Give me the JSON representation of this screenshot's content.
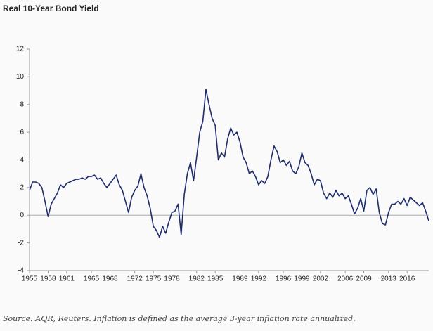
{
  "chart_data": {
    "type": "line",
    "title": "Real 10-Year Bond Yield",
    "footnote": "Source: AQR, Reuters. Inflation is defined as the average 3-year inflation rate annualized.",
    "x": [
      1955,
      1955.5,
      1956,
      1956.5,
      1957,
      1957.5,
      1958,
      1958.5,
      1959,
      1959.5,
      1960,
      1960.5,
      1961,
      1961.5,
      1962,
      1962.5,
      1963,
      1963.5,
      1964,
      1964.5,
      1965,
      1965.5,
      1966,
      1966.5,
      1967,
      1967.5,
      1968,
      1968.5,
      1969,
      1969.5,
      1970,
      1970.5,
      1971,
      1971.5,
      1972,
      1972.5,
      1973,
      1973.5,
      1974,
      1974.5,
      1975,
      1975.5,
      1976,
      1976.5,
      1977,
      1977.5,
      1978,
      1978.5,
      1979,
      1979.5,
      1980,
      1980.5,
      1981,
      1981.5,
      1982,
      1982.5,
      1983,
      1983.5,
      1984,
      1984.5,
      1985,
      1985.5,
      1986,
      1986.5,
      1987,
      1987.5,
      1988,
      1988.5,
      1989,
      1989.5,
      1990,
      1990.5,
      1991,
      1991.5,
      1992,
      1992.5,
      1993,
      1993.5,
      1994,
      1994.5,
      1995,
      1995.5,
      1996,
      1996.5,
      1997,
      1997.5,
      1998,
      1998.5,
      1999,
      1999.5,
      2000,
      2000.5,
      2001,
      2001.5,
      2002,
      2002.5,
      2003,
      2003.5,
      2004,
      2004.5,
      2005,
      2005.5,
      2006,
      2006.5,
      2007,
      2007.5,
      2008,
      2008.5,
      2009,
      2009.5,
      2010,
      2010.5,
      2011,
      2011.5,
      2012,
      2012.5,
      2013,
      2013.5,
      2014,
      2014.5,
      2015,
      2015.5,
      2016,
      2016.5,
      2017,
      2017.5,
      2018,
      2018.5,
      2019,
      2019.5
    ],
    "series": [
      {
        "name": "Real 10-Year Bond Yield",
        "color": "#1f2d6e",
        "values": [
          1.8,
          2.4,
          2.4,
          2.3,
          2.0,
          1.0,
          -0.1,
          0.8,
          1.2,
          1.6,
          2.2,
          2.0,
          2.3,
          2.4,
          2.5,
          2.6,
          2.6,
          2.7,
          2.6,
          2.8,
          2.8,
          2.9,
          2.6,
          2.7,
          2.3,
          2.0,
          2.3,
          2.6,
          2.9,
          2.2,
          1.8,
          1.0,
          0.2,
          1.3,
          1.8,
          2.1,
          3.0,
          2.0,
          1.4,
          0.5,
          -0.8,
          -1.1,
          -1.6,
          -0.8,
          -1.3,
          -0.5,
          0.2,
          0.3,
          0.8,
          -1.4,
          1.5,
          3.0,
          3.8,
          2.5,
          4.2,
          6.0,
          6.8,
          9.1,
          8.0,
          7.0,
          6.5,
          4.0,
          4.5,
          4.2,
          5.5,
          6.3,
          5.8,
          6.0,
          5.3,
          4.2,
          3.8,
          3.0,
          3.2,
          2.8,
          2.2,
          2.5,
          2.3,
          2.8,
          4.0,
          5.0,
          4.6,
          3.8,
          4.0,
          3.6,
          3.9,
          3.2,
          3.0,
          3.5,
          4.5,
          3.8,
          3.6,
          3.0,
          2.2,
          2.6,
          2.5,
          1.6,
          1.2,
          1.6,
          1.3,
          1.8,
          1.4,
          1.6,
          1.2,
          1.4,
          0.8,
          0.1,
          0.5,
          1.2,
          0.3,
          1.8,
          2.0,
          1.5,
          1.9,
          0.2,
          -0.6,
          -0.7,
          0.2,
          0.8,
          0.8,
          1.0,
          0.8,
          1.2,
          0.7,
          1.3,
          1.1,
          0.9,
          0.7,
          0.9,
          0.3,
          -0.4
        ]
      }
    ],
    "xlim": [
      1955,
      2019.5
    ],
    "xticks": [
      1955,
      1958,
      1961,
      1965,
      1968,
      1972,
      1975,
      1978,
      1982,
      1985,
      1989,
      1992,
      1996,
      1999,
      2002,
      2006,
      2009,
      2013,
      2016
    ],
    "ylim": [
      -4,
      12
    ],
    "yticks": [
      -4,
      -2,
      0,
      2,
      4,
      6,
      8,
      10,
      12
    ],
    "grid": false
  }
}
